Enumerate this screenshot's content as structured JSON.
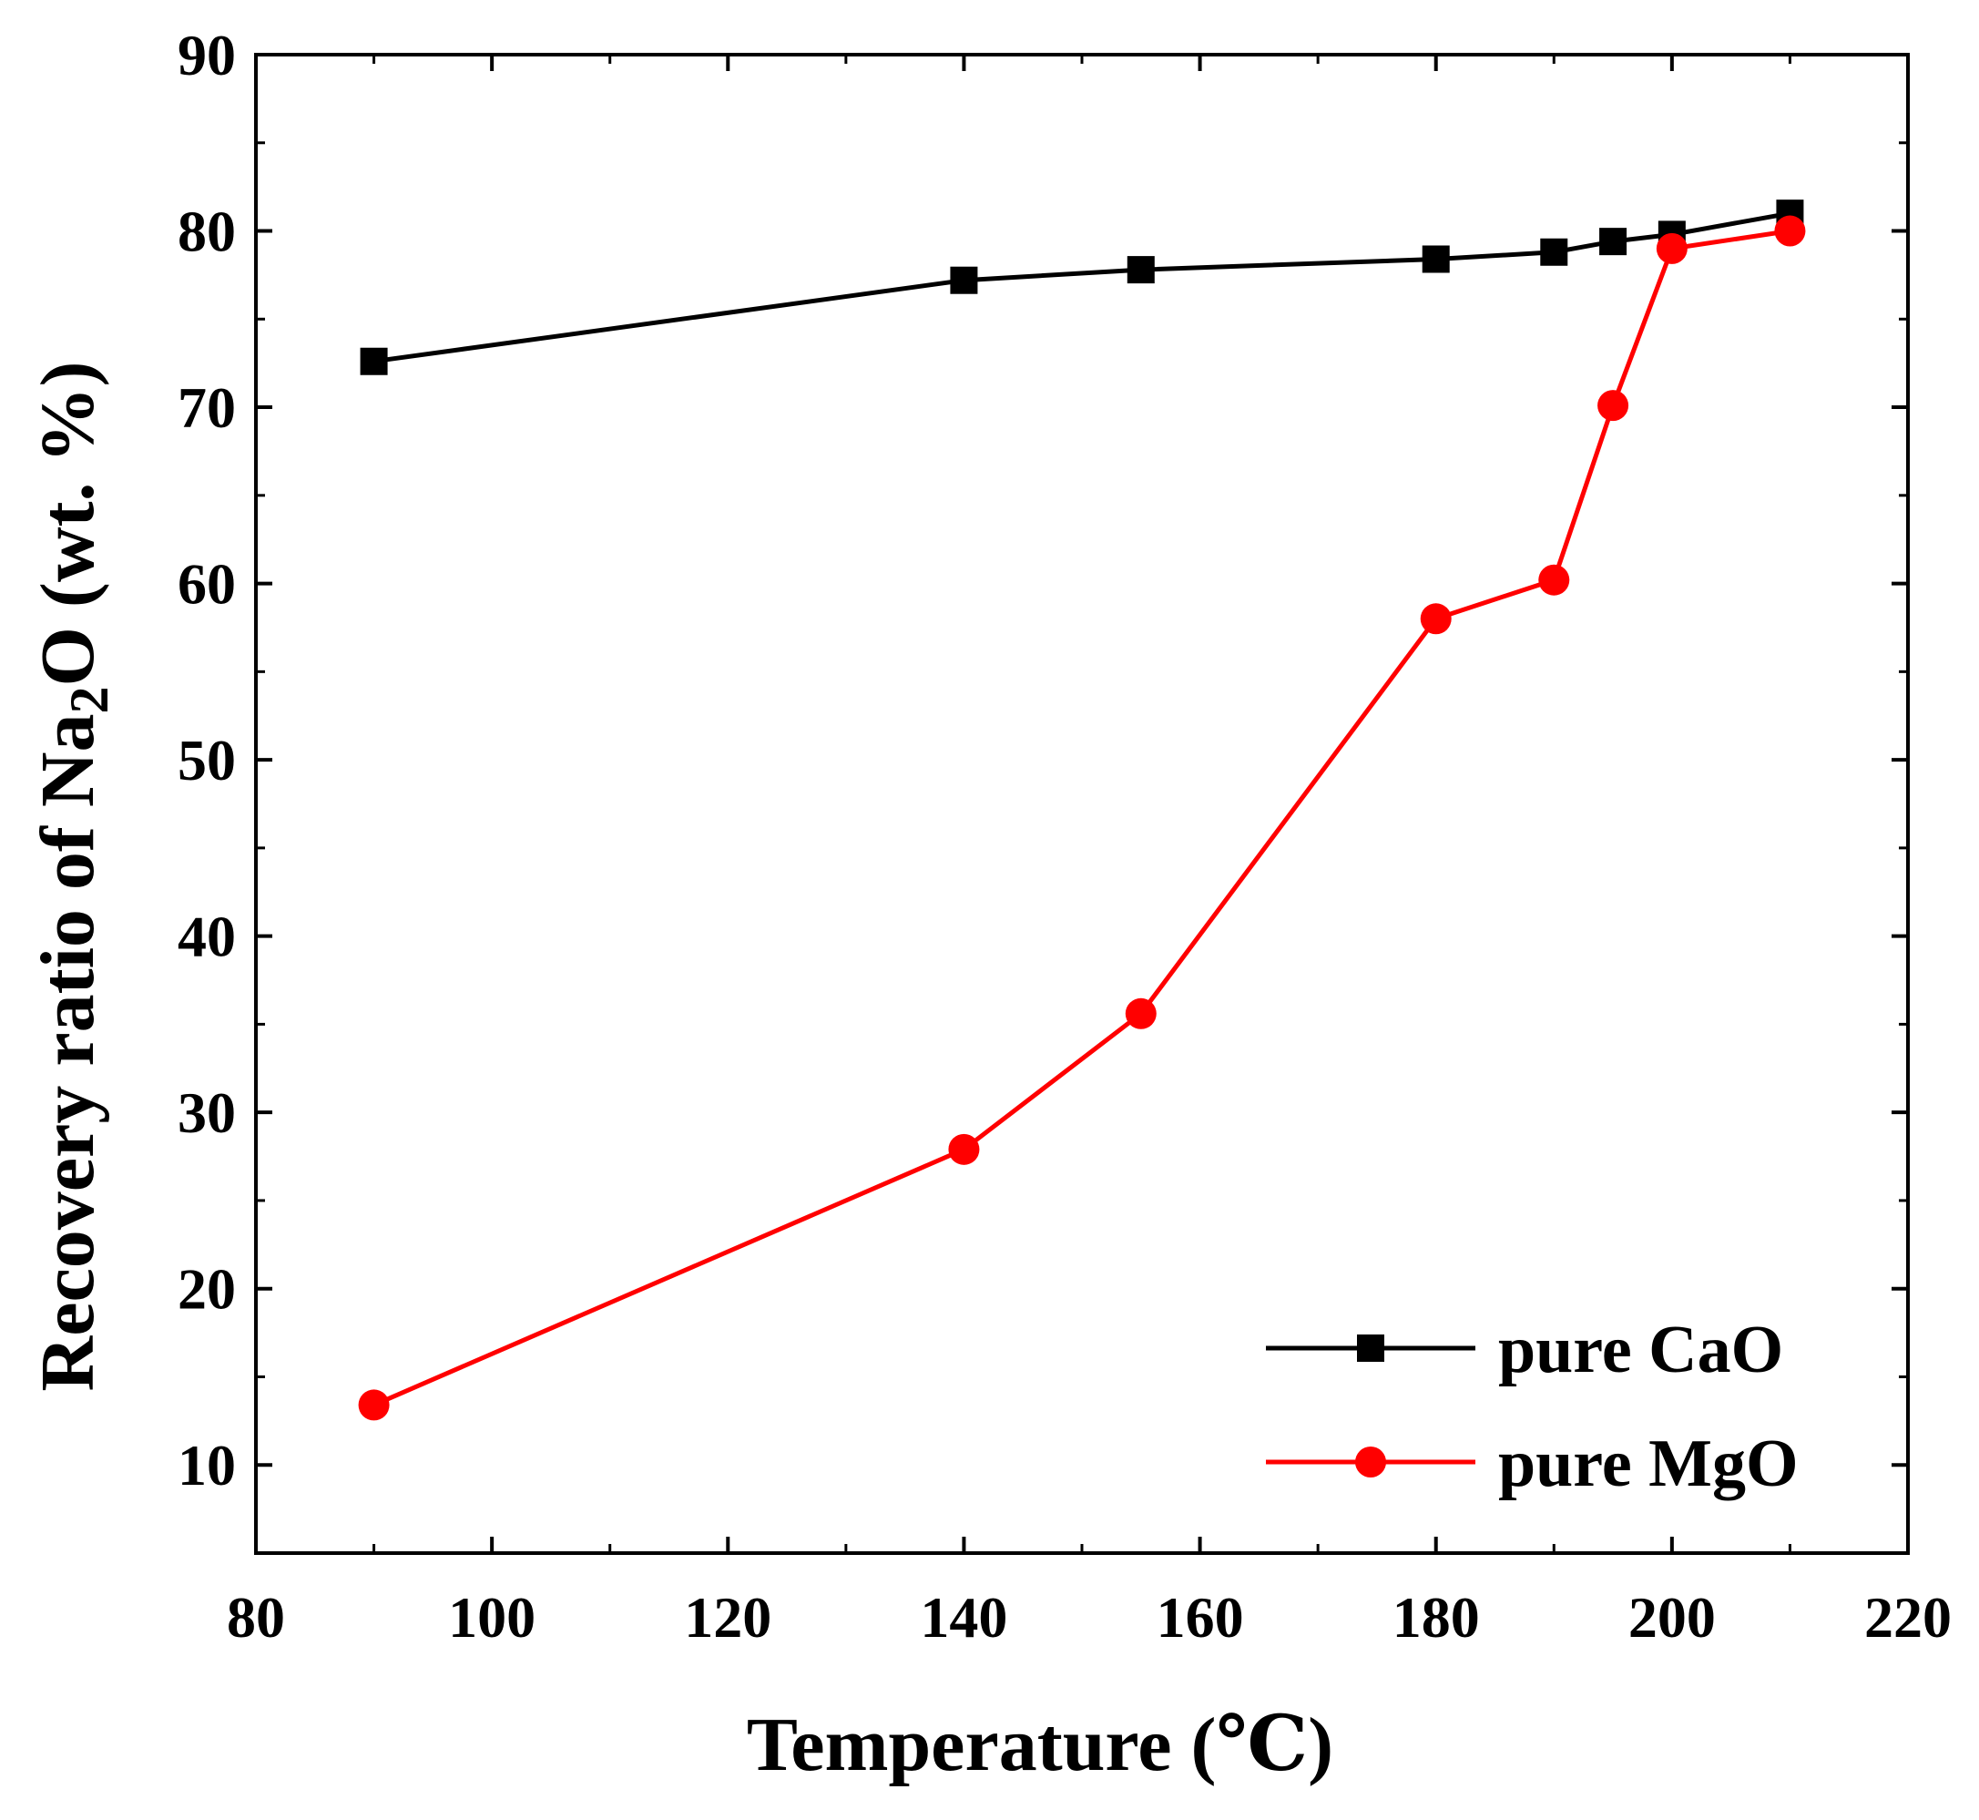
{
  "chart_data": {
    "type": "line",
    "title": "",
    "xlabel": "Temperature (℃)",
    "ylabel": {
      "prefix": "Recovery ratio of Na",
      "subscript": "2",
      "suffix": "O  (wt. %)"
    },
    "xlim": [
      80,
      220
    ],
    "ylim": [
      5,
      90
    ],
    "xticks": [
      80,
      100,
      120,
      140,
      160,
      180,
      200,
      220
    ],
    "yticks": [
      10,
      20,
      30,
      40,
      50,
      60,
      70,
      80,
      90
    ],
    "grid": false,
    "legend_position": "bottom-right",
    "series": [
      {
        "name": "pure CaO",
        "color": "#000000",
        "marker": "square",
        "x": [
          90,
          140,
          155,
          180,
          190,
          195,
          200,
          210
        ],
        "y": [
          72.6,
          77.2,
          77.8,
          78.4,
          78.8,
          79.4,
          79.8,
          81.0
        ]
      },
      {
        "name": "pure MgO",
        "color": "#ff0000",
        "marker": "circle",
        "x": [
          90,
          140,
          155,
          180,
          190,
          195,
          200,
          210
        ],
        "y": [
          13.4,
          27.9,
          35.6,
          58.0,
          60.2,
          70.1,
          79.0,
          80.0
        ]
      }
    ]
  }
}
